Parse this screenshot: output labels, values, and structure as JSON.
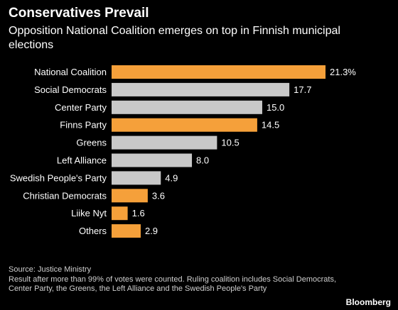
{
  "header": {
    "title": "Conservatives Prevail",
    "subtitle": "Opposition National Coalition emerges on top in Finnish municipal elections"
  },
  "footer": {
    "source": "Source: Justice Ministry",
    "note": "Result after more than 99% of votes were counted. Ruling coalition includes Social Democrats, Center Party, the Greens, the Left Alliance and the Swedish People's Party",
    "brand": "Bloomberg"
  },
  "colors": {
    "opposition": "#f5a03a",
    "ruling": "#c8c8c8",
    "background": "#000000"
  },
  "chart_data": {
    "type": "bar",
    "orientation": "horizontal",
    "title": "Conservatives Prevail",
    "subtitle": "Opposition National Coalition emerges on top in Finnish municipal elections",
    "categories": [
      "National Coalition",
      "Social Democrats",
      "Center Party",
      "Finns Party",
      "Greens",
      "Left Alliance",
      "Swedish People's Party",
      "Christian Democrats",
      "Liike Nyt",
      "Others"
    ],
    "values": [
      21.3,
      17.7,
      15.0,
      14.5,
      10.5,
      8.0,
      4.9,
      3.6,
      1.6,
      2.9
    ],
    "value_labels": [
      "21.3%",
      "17.7",
      "15.0",
      "14.5",
      "10.5",
      "8.0",
      "4.9",
      "3.6",
      "1.6",
      "2.9"
    ],
    "groups": [
      "opposition",
      "ruling",
      "ruling",
      "opposition",
      "ruling",
      "ruling",
      "ruling",
      "opposition",
      "opposition",
      "opposition"
    ],
    "xlim": [
      0,
      21.3
    ],
    "grid": false,
    "legend": "none"
  }
}
